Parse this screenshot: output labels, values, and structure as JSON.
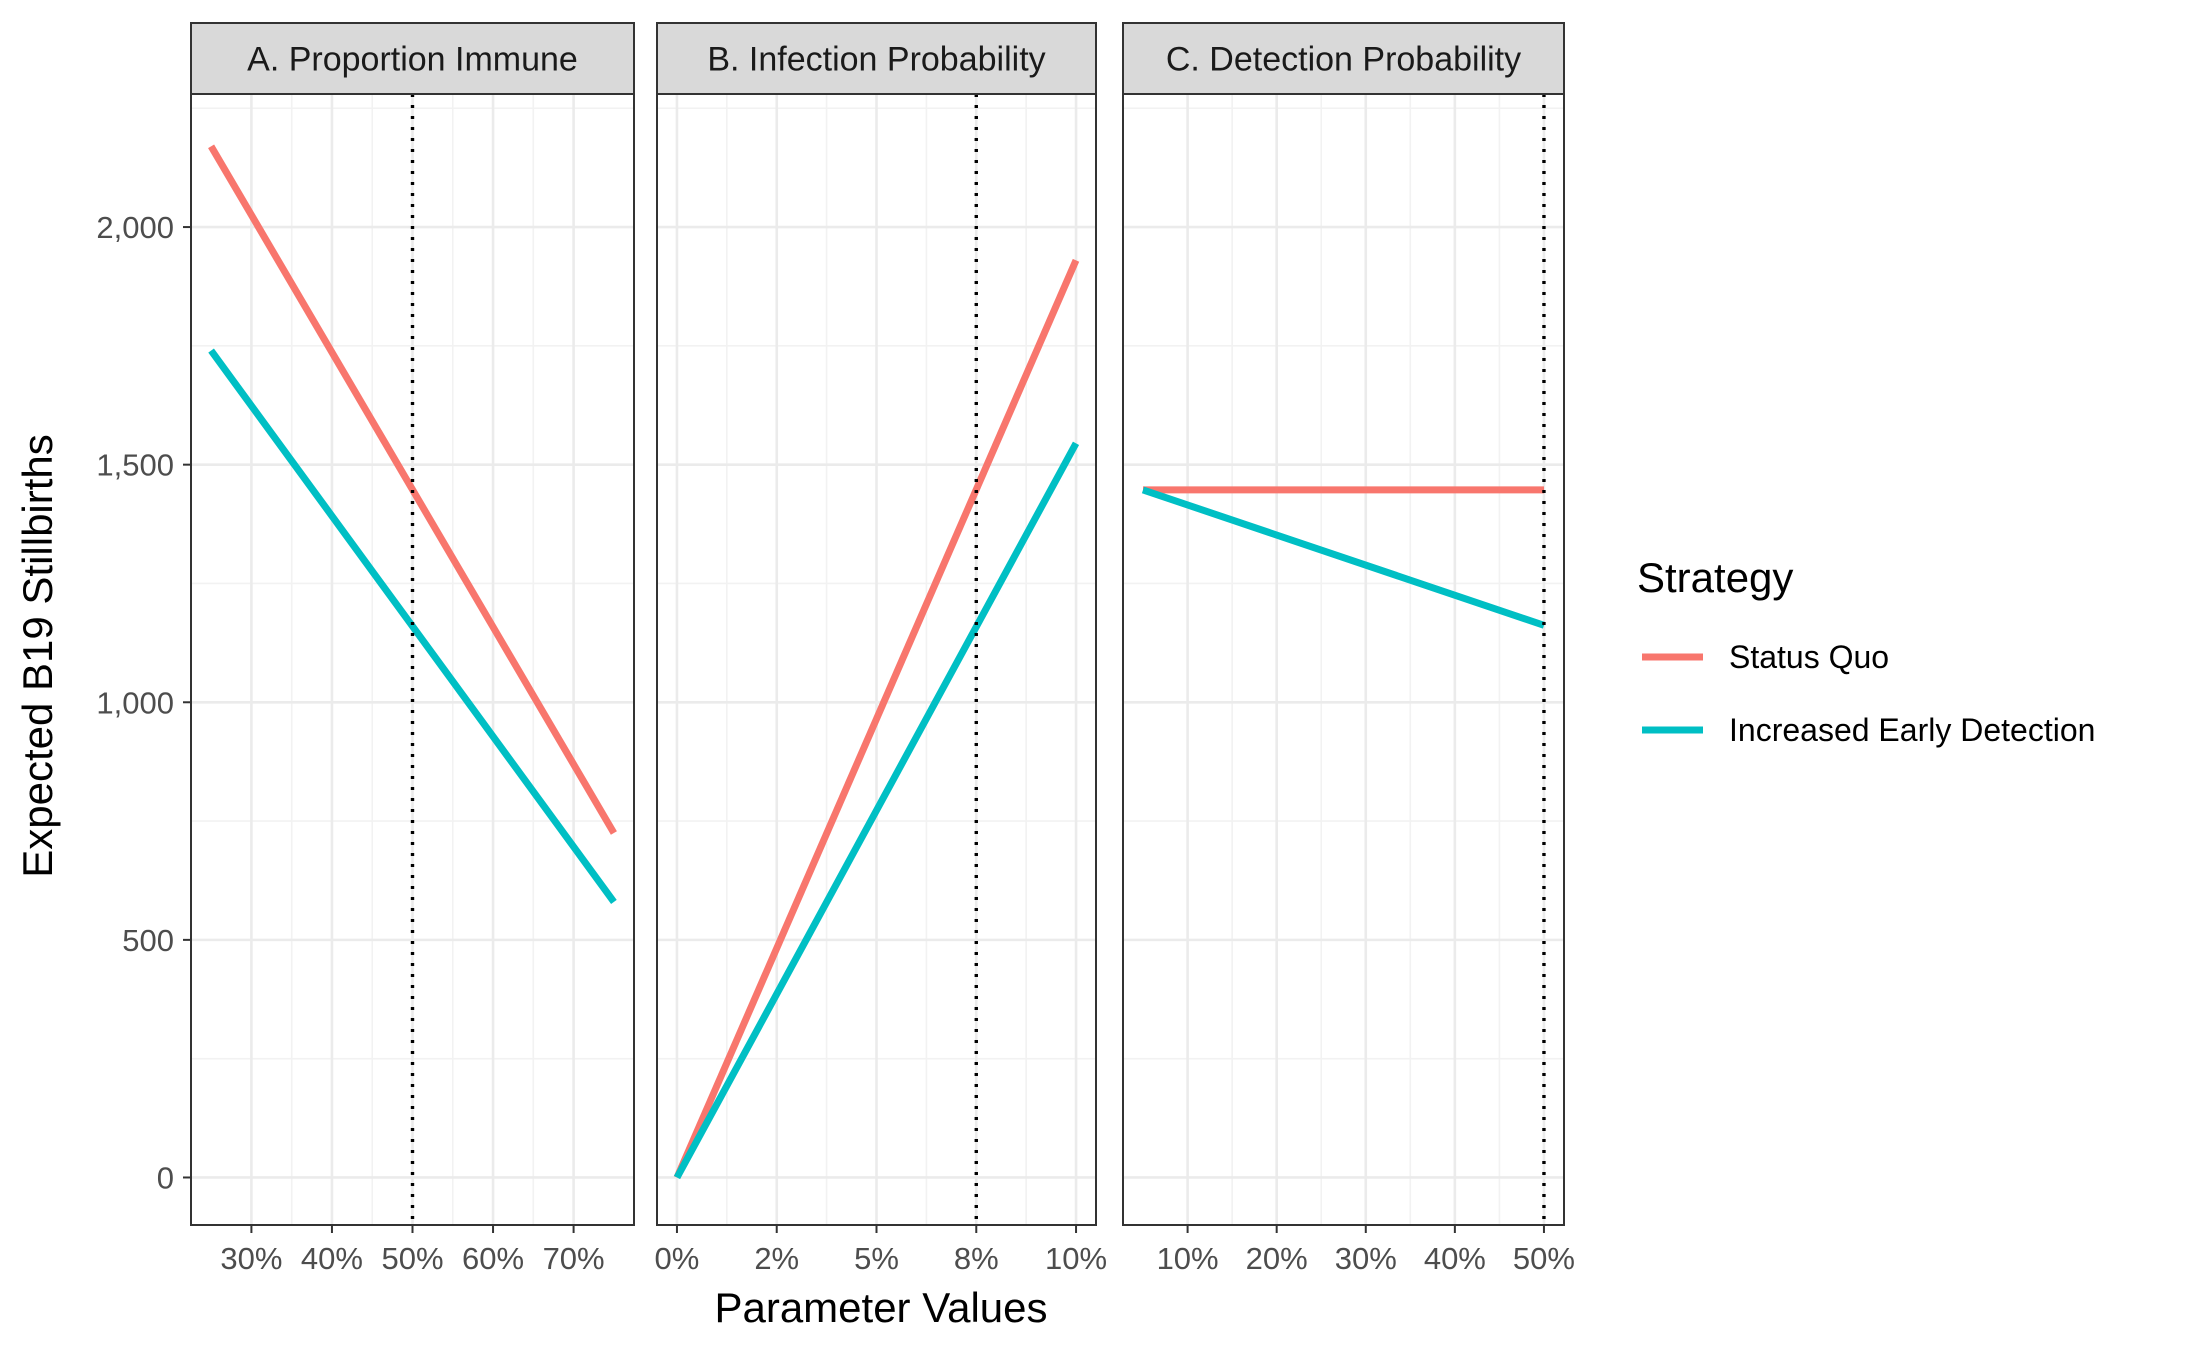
{
  "chart_data": {
    "type": "line",
    "ylabel": "Expected B19 Stillbirths",
    "xlabel": "Parameter Values",
    "y_ticks": [
      0,
      500,
      1000,
      1500,
      2000
    ],
    "y_tick_labels": [
      "0",
      "500",
      "1,000",
      "1,500",
      "2,000"
    ],
    "ylim": [
      -100,
      2280
    ],
    "grid": true,
    "legend": {
      "title": "Strategy",
      "position": "right",
      "entries": [
        {
          "name": "Status Quo",
          "color": "#F8766D"
        },
        {
          "name": "Increased Early Detection",
          "color": "#00BFC4"
        }
      ]
    },
    "panels": [
      {
        "title": "A. Proportion Immune",
        "xlim": [
          0.225,
          0.775
        ],
        "x_ticks": [
          0.3,
          0.4,
          0.5,
          0.6,
          0.7
        ],
        "x_tick_labels": [
          "30%",
          "40%",
          "50%",
          "60%",
          "70%"
        ],
        "reference_x": 0.5,
        "series": [
          {
            "name": "Status Quo",
            "x": [
              0.25,
              0.75
            ],
            "y": [
              2170,
              725
            ]
          },
          {
            "name": "Increased Early Detection",
            "x": [
              0.25,
              0.75
            ],
            "y": [
              1740,
              580
            ]
          }
        ]
      },
      {
        "title": "B. Infection Probability",
        "xlim": [
          -0.005,
          0.105
        ],
        "x_ticks": [
          0,
          0.025,
          0.05,
          0.075,
          0.1
        ],
        "x_tick_labels": [
          "0%",
          "2%",
          "5%",
          "8%",
          "10%"
        ],
        "reference_x": 0.075,
        "series": [
          {
            "name": "Status Quo",
            "x": [
              0,
              0.1
            ],
            "y": [
              0,
              1930
            ]
          },
          {
            "name": "Increased Early Detection",
            "x": [
              0,
              0.1
            ],
            "y": [
              0,
              1545
            ]
          }
        ]
      },
      {
        "title": "C. Detection Probability",
        "xlim": [
          0.0275,
          0.5225
        ],
        "x_ticks": [
          0.1,
          0.2,
          0.3,
          0.4,
          0.5
        ],
        "x_tick_labels": [
          "10%",
          "20%",
          "30%",
          "40%",
          "50%"
        ],
        "reference_x": 0.5,
        "series": [
          {
            "name": "Status Quo",
            "x": [
              0.05,
              0.5
            ],
            "y": [
              1447,
              1447
            ]
          },
          {
            "name": "Increased Early Detection",
            "x": [
              0.05,
              0.5
            ],
            "y": [
              1447,
              1162
            ]
          }
        ]
      }
    ]
  }
}
